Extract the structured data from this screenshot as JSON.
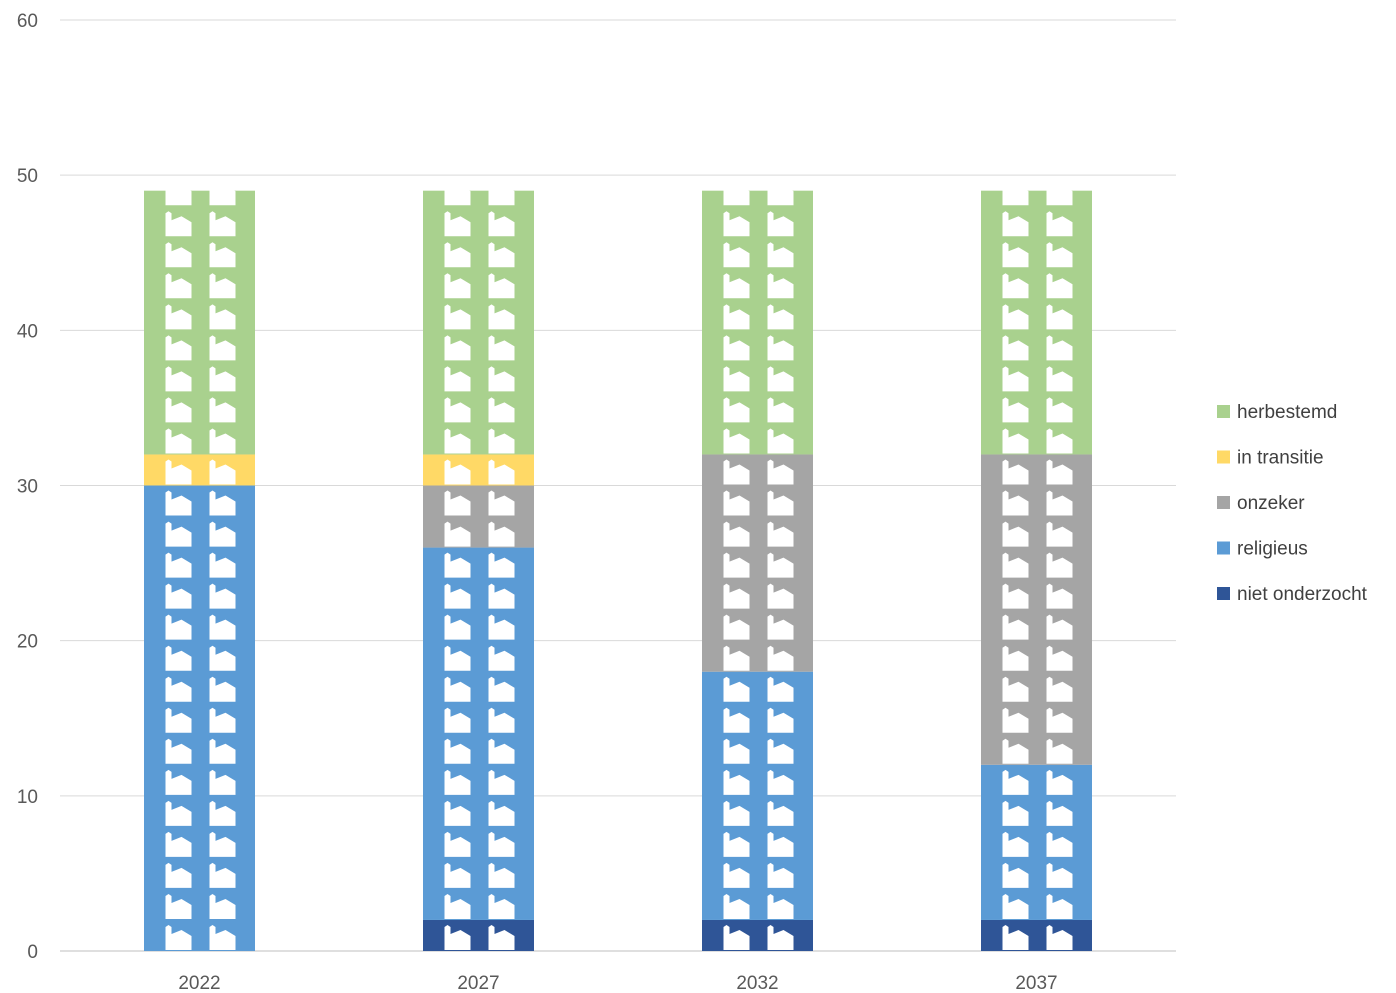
{
  "chart_data": {
    "type": "bar",
    "stacked": true,
    "categories": [
      "2022",
      "2027",
      "2032",
      "2037"
    ],
    "ylim": [
      0,
      60
    ],
    "yticks": [
      "0",
      "10",
      "20",
      "30",
      "40",
      "50",
      "60"
    ],
    "grid": true,
    "legend_position": "right",
    "icon_unit": 2,
    "icon": "church-icon",
    "series": [
      {
        "name": "niet onderzocht",
        "color": "#2f5597",
        "values": [
          0,
          2,
          2,
          2
        ]
      },
      {
        "name": "religieus",
        "color": "#5b9bd5",
        "values": [
          30,
          24,
          16,
          10
        ]
      },
      {
        "name": "onzeker",
        "color": "#a5a5a5",
        "values": [
          0,
          4,
          14,
          20
        ]
      },
      {
        "name": "in transitie",
        "color": "#ffd966",
        "values": [
          2,
          2,
          0,
          0
        ]
      },
      {
        "name": "herbestemd",
        "color": "#a9d18e",
        "values": [
          17,
          17,
          17,
          17
        ]
      }
    ],
    "legend_order": [
      "herbestemd",
      "in transitie",
      "onzeker",
      "religieus",
      "niet onderzocht"
    ]
  }
}
